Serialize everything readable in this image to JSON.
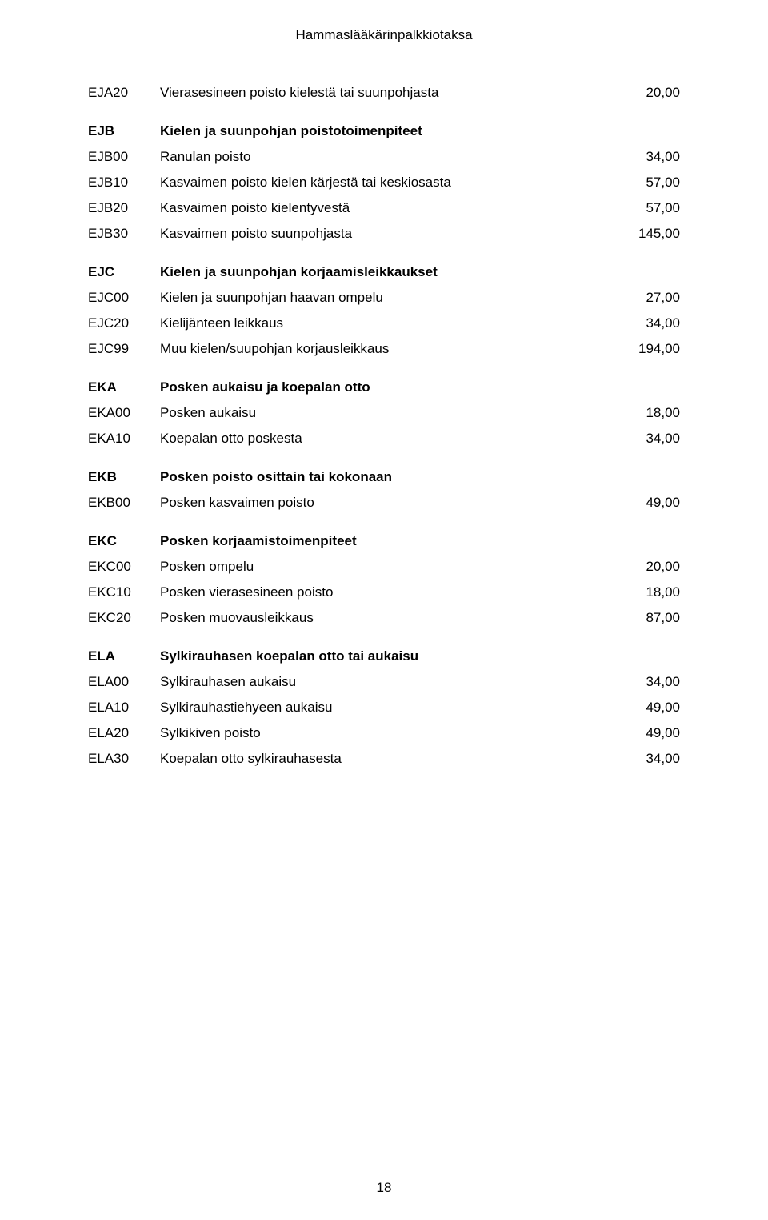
{
  "header": "Hammaslääkärinpalkkiotaksa",
  "page_number": "18",
  "sections": [
    {
      "rows": [
        {
          "code": "EJA20",
          "desc": "Vierasesineen poisto kielestä tai suunpohjasta",
          "val": "20,00"
        }
      ]
    },
    {
      "header_code": "EJB",
      "header_desc": "Kielen ja suunpohjan poistotoimenpiteet",
      "rows": [
        {
          "code": "EJB00",
          "desc": "Ranulan poisto",
          "val": "34,00"
        },
        {
          "code": "EJB10",
          "desc": "Kasvaimen poisto kielen kärjestä tai keskiosasta",
          "val": "57,00"
        },
        {
          "code": "EJB20",
          "desc": "Kasvaimen poisto kielentyvestä",
          "val": "57,00"
        },
        {
          "code": "EJB30",
          "desc": "Kasvaimen poisto suunpohjasta",
          "val": "145,00"
        }
      ]
    },
    {
      "header_code": "EJC",
      "header_desc": "Kielen ja suunpohjan korjaamisleikkaukset",
      "rows": [
        {
          "code": "EJC00",
          "desc": "Kielen ja suunpohjan haavan ompelu",
          "val": "27,00"
        },
        {
          "code": "EJC20",
          "desc": "Kielijänteen leikkaus",
          "val": "34,00"
        },
        {
          "code": "EJC99",
          "desc": "Muu kielen/suupohjan korjausleikkaus",
          "val": "194,00"
        }
      ]
    },
    {
      "header_code": "EKA",
      "header_desc": "Posken aukaisu ja koepalan otto",
      "rows": [
        {
          "code": "EKA00",
          "desc": "Posken aukaisu",
          "val": "18,00"
        },
        {
          "code": "EKA10",
          "desc": "Koepalan otto poskesta",
          "val": "34,00"
        }
      ]
    },
    {
      "header_code": "EKB",
      "header_desc": "Posken poisto osittain tai kokonaan",
      "rows": [
        {
          "code": "EKB00",
          "desc": "Posken kasvaimen poisto",
          "val": "49,00"
        }
      ]
    },
    {
      "header_code": "EKC",
      "header_desc": "Posken korjaamistoimenpiteet",
      "rows": [
        {
          "code": "EKC00",
          "desc": "Posken ompelu",
          "val": "20,00"
        },
        {
          "code": "EKC10",
          "desc": "Posken vierasesineen poisto",
          "val": "18,00"
        },
        {
          "code": "EKC20",
          "desc": "Posken muovausleikkaus",
          "val": "87,00"
        }
      ]
    },
    {
      "header_code": "ELA",
      "header_desc": "Sylkirauhasen koepalan otto tai aukaisu",
      "rows": [
        {
          "code": "ELA00",
          "desc": "Sylkirauhasen aukaisu",
          "val": "34,00"
        },
        {
          "code": "ELA10",
          "desc": "Sylkirauhastiehyeen aukaisu",
          "val": "49,00"
        },
        {
          "code": "ELA20",
          "desc": "Sylkikiven poisto",
          "val": "49,00"
        },
        {
          "code": "ELA30",
          "desc": "Koepalan otto sylkirauhasesta",
          "val": "34,00"
        }
      ]
    }
  ]
}
